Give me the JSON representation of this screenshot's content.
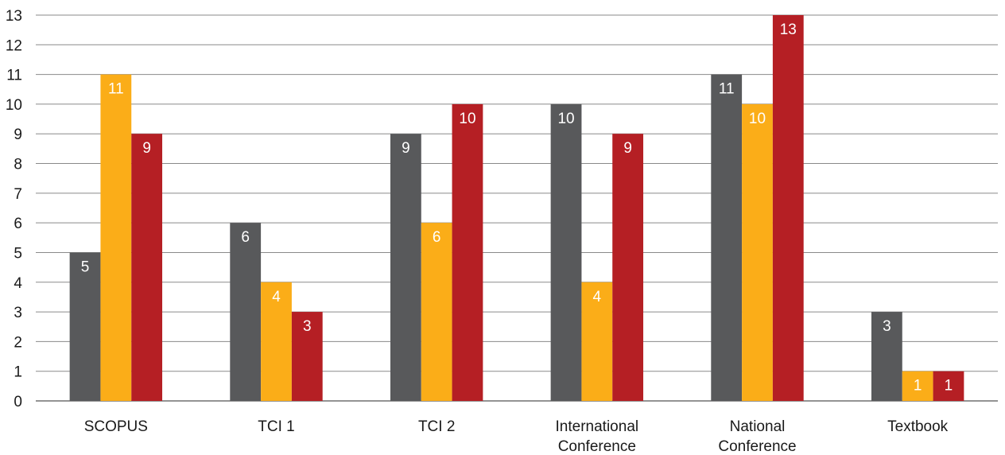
{
  "chart_data": {
    "type": "bar",
    "categories": [
      [
        "SCOPUS"
      ],
      [
        "TCI 1"
      ],
      [
        "TCI 2"
      ],
      [
        "International",
        "Conference"
      ],
      [
        "National",
        "Conference"
      ],
      [
        "Textbook"
      ]
    ],
    "series": [
      {
        "color": "#58595b",
        "values": [
          5,
          6,
          9,
          10,
          11,
          3
        ]
      },
      {
        "color": "#fbad18",
        "values": [
          11,
          4,
          6,
          4,
          10,
          1
        ]
      },
      {
        "color": "#b51f24",
        "values": [
          9,
          3,
          10,
          9,
          13,
          1
        ]
      }
    ],
    "ylim": [
      0,
      13
    ],
    "yticks": [
      0,
      1,
      2,
      3,
      4,
      5,
      6,
      7,
      8,
      9,
      10,
      11,
      12,
      13
    ],
    "grid": true,
    "legend": "none",
    "title": "",
    "xlabel": "",
    "ylabel": ""
  }
}
